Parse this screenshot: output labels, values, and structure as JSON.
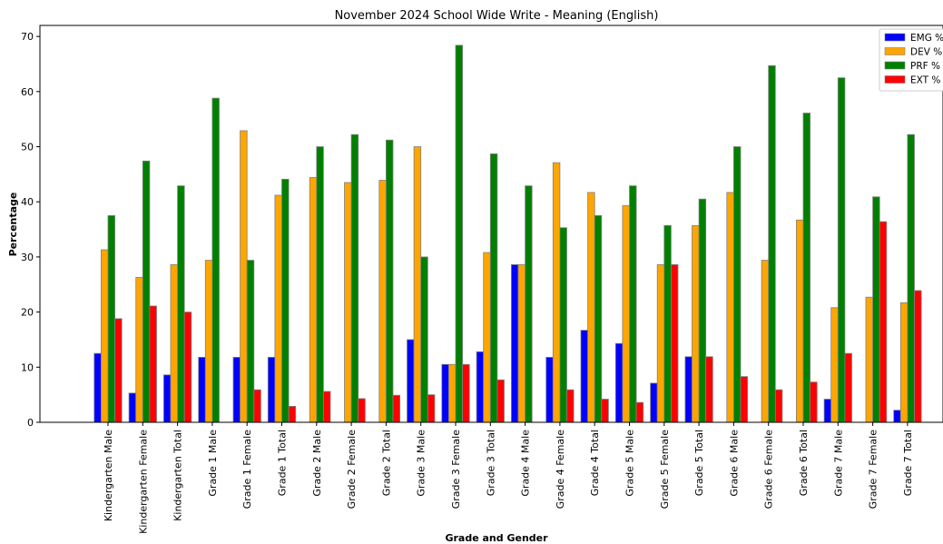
{
  "chart_data": {
    "type": "bar",
    "title": "November 2024 School Wide Write - Meaning (English)",
    "xlabel": "Grade and Gender",
    "ylabel": "Percentage",
    "ylim": [
      0,
      72
    ],
    "yticks": [
      0,
      10,
      20,
      30,
      40,
      50,
      60,
      70
    ],
    "grid": false,
    "legend_position": "top-right",
    "categories": [
      "Kindergarten Male",
      "Kindergarten Female",
      "Kindergarten Total",
      "Grade 1 Male",
      "Grade 1 Female",
      "Grade 1 Total",
      "Grade 2 Male",
      "Grade 2 Female",
      "Grade 2 Total",
      "Grade 3 Male",
      "Grade 3 Female",
      "Grade 3 Total",
      "Grade 4 Male",
      "Grade 4 Female",
      "Grade 4 Total",
      "Grade 5 Male",
      "Grade 5 Female",
      "Grade 5 Total",
      "Grade 6 Male",
      "Grade 6 Female",
      "Grade 6 Total",
      "Grade 7 Male",
      "Grade 7 Female",
      "Grade 7 Total"
    ],
    "series": [
      {
        "name": "EMG %",
        "color": "#0000ff",
        "values": [
          12.5,
          5.3,
          8.6,
          11.8,
          11.8,
          11.8,
          0,
          0,
          0,
          15.0,
          10.5,
          12.8,
          28.6,
          11.8,
          16.7,
          14.3,
          7.1,
          11.9,
          0,
          0,
          0,
          4.2,
          0,
          2.2
        ]
      },
      {
        "name": "DEV %",
        "color": "#ffa500",
        "values": [
          31.3,
          26.3,
          28.6,
          29.4,
          52.9,
          41.2,
          44.4,
          43.5,
          43.9,
          50.0,
          10.5,
          30.8,
          28.6,
          47.1,
          41.7,
          39.3,
          28.6,
          35.7,
          41.7,
          29.4,
          36.7,
          20.8,
          22.7,
          21.7
        ]
      },
      {
        "name": "PRF %",
        "color": "#008000",
        "values": [
          37.5,
          47.4,
          42.9,
          58.8,
          29.4,
          44.1,
          50.0,
          52.2,
          51.2,
          30.0,
          68.4,
          48.7,
          42.9,
          35.3,
          37.5,
          42.9,
          35.7,
          40.5,
          50.0,
          64.7,
          56.1,
          62.5,
          40.9,
          52.2
        ]
      },
      {
        "name": "EXT %",
        "color": "#ff0000",
        "values": [
          18.8,
          21.1,
          20.0,
          0,
          5.9,
          2.9,
          5.6,
          4.3,
          4.9,
          5.0,
          10.5,
          7.7,
          0,
          5.9,
          4.2,
          3.6,
          28.6,
          11.9,
          8.3,
          5.9,
          7.3,
          12.5,
          36.4,
          23.9
        ]
      }
    ]
  }
}
